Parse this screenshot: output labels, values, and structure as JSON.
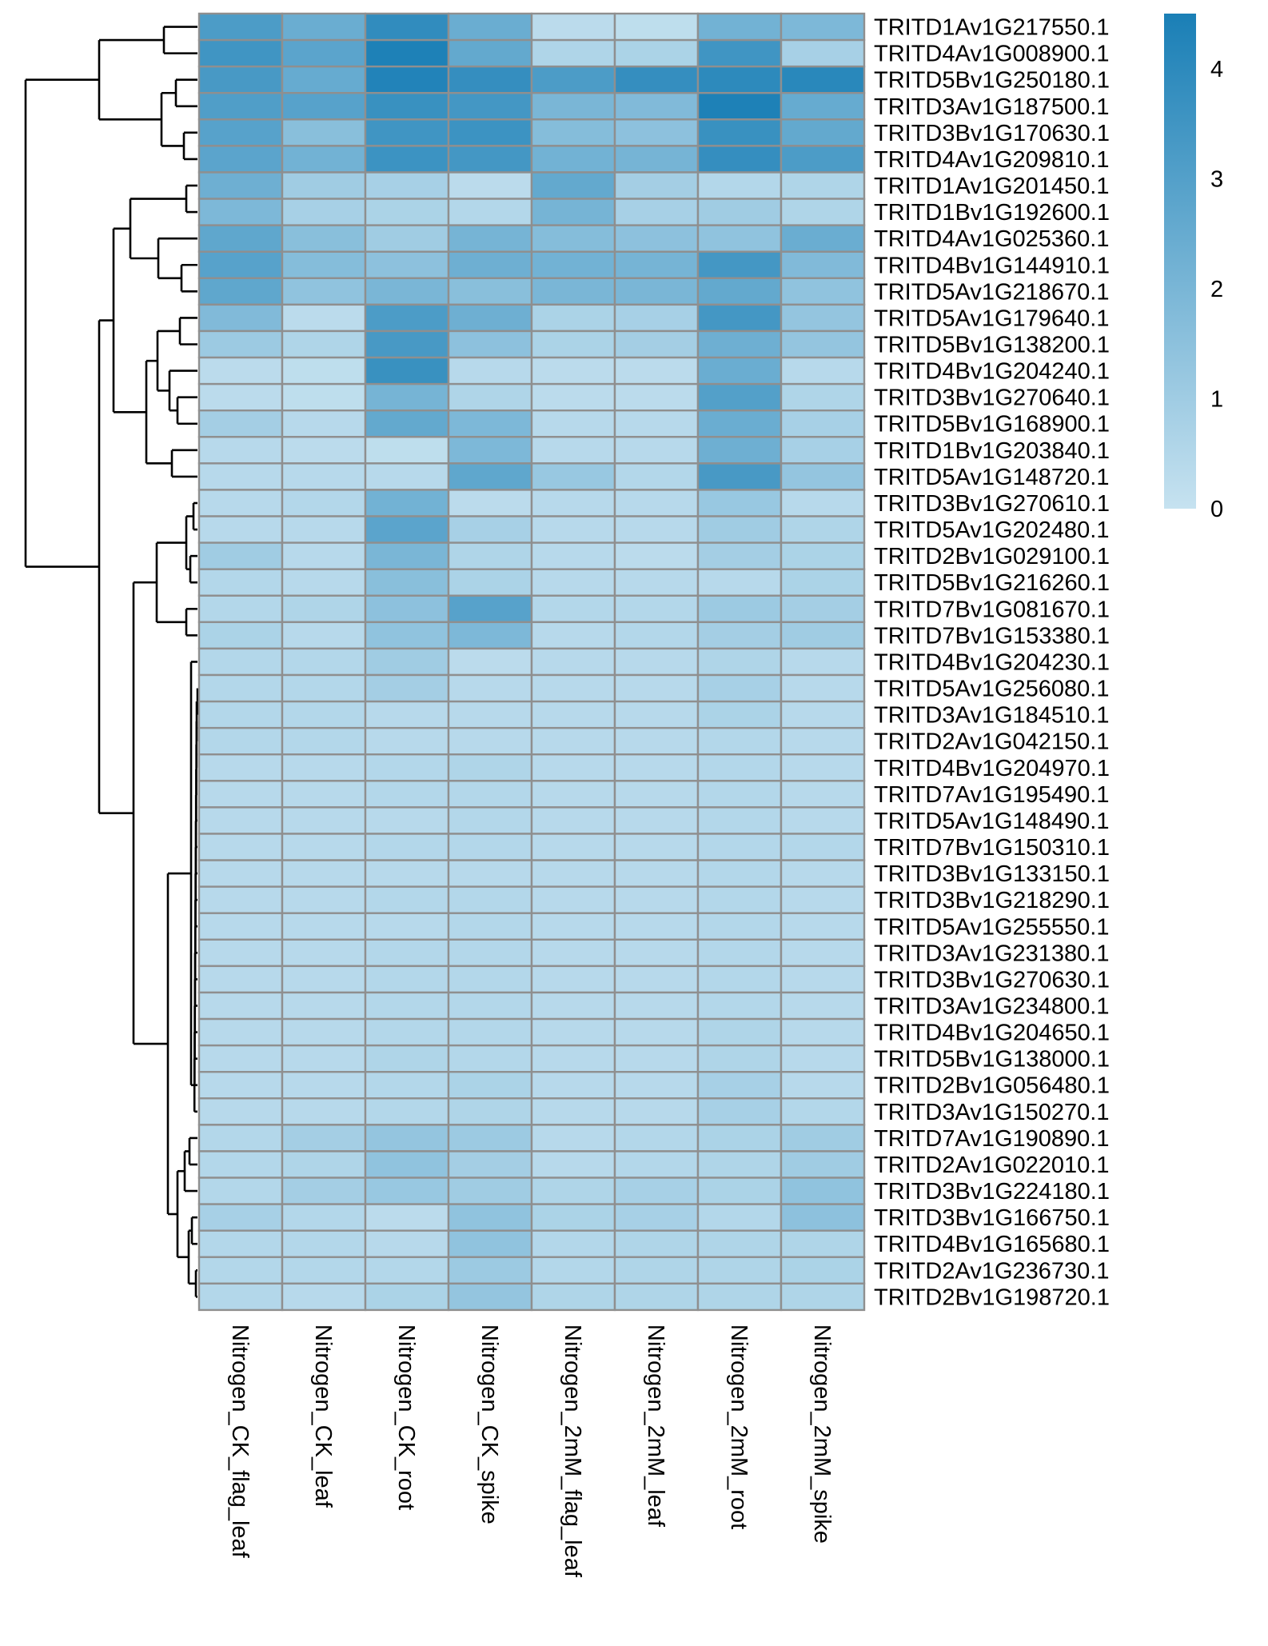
{
  "chart_data": {
    "type": "heatmap",
    "title": "",
    "columns": [
      "Nitrogen_CK_flag_leaf",
      "Nitrogen_CK_leaf",
      "Nitrogen_CK_root",
      "Nitrogen_CK_spike",
      "Nitrogen_2mM_flag_leaf",
      "Nitrogen_2mM_leaf",
      "Nitrogen_2mM_root",
      "Nitrogen_2mM_spike"
    ],
    "rows": [
      "TRITD1Av1G217550.1",
      "TRITD4Av1G008900.1",
      "TRITD5Bv1G250180.1",
      "TRITD3Av1G187500.1",
      "TRITD3Bv1G170630.1",
      "TRITD4Av1G209810.1",
      "TRITD1Av1G201450.1",
      "TRITD1Bv1G192600.1",
      "TRITD4Av1G025360.1",
      "TRITD4Bv1G144910.1",
      "TRITD5Av1G218670.1",
      "TRITD5Av1G179640.1",
      "TRITD5Bv1G138200.1",
      "TRITD4Bv1G204240.1",
      "TRITD3Bv1G270640.1",
      "TRITD5Bv1G168900.1",
      "TRITD1Bv1G203840.1",
      "TRITD5Av1G148720.1",
      "TRITD3Bv1G270610.1",
      "TRITD5Av1G202480.1",
      "TRITD2Bv1G029100.1",
      "TRITD5Bv1G216260.1",
      "TRITD7Bv1G081670.1",
      "TRITD7Bv1G153380.1",
      "TRITD4Bv1G204230.1",
      "TRITD5Av1G256080.1",
      "TRITD3Av1G184510.1",
      "TRITD2Av1G042150.1",
      "TRITD4Bv1G204970.1",
      "TRITD7Av1G195490.1",
      "TRITD5Av1G148490.1",
      "TRITD7Bv1G150310.1",
      "TRITD3Bv1G133150.1",
      "TRITD3Bv1G218290.1",
      "TRITD5Av1G255550.1",
      "TRITD3Av1G231380.1",
      "TRITD3Bv1G270630.1",
      "TRITD3Av1G234800.1",
      "TRITD4Bv1G204650.1",
      "TRITD5Bv1G138000.1",
      "TRITD2Bv1G056480.1",
      "TRITD3Av1G150270.1",
      "TRITD7Av1G190890.1",
      "TRITD2Av1G022010.1",
      "TRITD3Bv1G224180.1",
      "TRITD3Bv1G166750.1",
      "TRITD4Bv1G165680.1",
      "TRITD2Av1G236730.1",
      "TRITD2Bv1G198720.1"
    ],
    "values": [
      [
        3.2,
        2.4,
        3.9,
        2.4,
        0.3,
        0.2,
        2.2,
        1.9
      ],
      [
        3.5,
        2.8,
        4.4,
        2.6,
        0.6,
        0.7,
        3.5,
        0.8
      ],
      [
        3.3,
        2.5,
        4.3,
        3.8,
        3.2,
        3.8,
        4.0,
        4.1
      ],
      [
        3.1,
        2.9,
        3.7,
        3.4,
        2.0,
        1.8,
        4.4,
        2.5
      ],
      [
        2.9,
        1.6,
        3.5,
        3.6,
        1.7,
        1.5,
        3.7,
        2.6
      ],
      [
        2.8,
        2.2,
        3.6,
        3.4,
        2.2,
        2.1,
        3.8,
        3.2
      ],
      [
        2.3,
        1.0,
        0.8,
        0.3,
        2.6,
        0.9,
        0.5,
        0.6
      ],
      [
        1.9,
        0.8,
        0.7,
        0.5,
        2.1,
        0.8,
        1.0,
        0.6
      ],
      [
        2.7,
        1.6,
        1.0,
        2.1,
        1.7,
        1.5,
        1.4,
        2.4
      ],
      [
        2.9,
        1.7,
        1.5,
        2.3,
        2.2,
        2.1,
        3.4,
        1.8
      ],
      [
        2.7,
        1.4,
        2.0,
        1.6,
        2.0,
        2.0,
        2.6,
        1.4
      ],
      [
        1.8,
        0.3,
        3.2,
        2.3,
        0.7,
        0.8,
        3.4,
        1.3
      ],
      [
        1.1,
        0.6,
        3.3,
        1.5,
        0.7,
        0.9,
        2.3,
        1.3
      ],
      [
        0.3,
        0.2,
        3.7,
        0.4,
        0.3,
        0.3,
        2.4,
        0.4
      ],
      [
        0.3,
        0.2,
        2.1,
        0.6,
        0.3,
        0.3,
        3.0,
        0.6
      ],
      [
        0.9,
        0.4,
        2.6,
        1.9,
        0.4,
        0.4,
        2.4,
        0.8
      ],
      [
        0.4,
        0.3,
        0.2,
        1.9,
        0.4,
        0.4,
        2.3,
        0.8
      ],
      [
        0.4,
        0.4,
        0.4,
        2.7,
        1.2,
        0.5,
        3.3,
        1.3
      ],
      [
        0.4,
        0.5,
        2.2,
        0.3,
        0.4,
        0.4,
        1.2,
        0.4
      ],
      [
        0.4,
        0.4,
        2.8,
        0.8,
        0.4,
        0.4,
        1.0,
        0.6
      ],
      [
        1.0,
        0.4,
        2.0,
        0.6,
        0.4,
        0.3,
        0.9,
        0.7
      ],
      [
        0.5,
        0.4,
        1.6,
        0.7,
        0.4,
        0.4,
        0.4,
        0.7
      ],
      [
        0.5,
        0.6,
        1.5,
        2.9,
        0.5,
        0.5,
        1.1,
        0.9
      ],
      [
        0.7,
        0.4,
        1.4,
        1.9,
        0.4,
        0.5,
        0.9,
        1.0
      ],
      [
        0.5,
        0.5,
        1.0,
        0.3,
        0.4,
        0.4,
        0.6,
        0.4
      ],
      [
        0.5,
        0.5,
        0.9,
        0.4,
        0.4,
        0.4,
        0.8,
        0.4
      ],
      [
        0.5,
        0.5,
        0.4,
        0.4,
        0.4,
        0.4,
        0.7,
        0.4
      ],
      [
        0.5,
        0.5,
        0.4,
        0.4,
        0.4,
        0.4,
        0.5,
        0.4
      ],
      [
        0.4,
        0.4,
        0.5,
        0.6,
        0.4,
        0.4,
        0.5,
        0.4
      ],
      [
        0.4,
        0.4,
        0.5,
        0.5,
        0.4,
        0.4,
        0.5,
        0.4
      ],
      [
        0.4,
        0.4,
        0.4,
        0.5,
        0.4,
        0.4,
        0.5,
        0.4
      ],
      [
        0.4,
        0.4,
        0.5,
        0.5,
        0.4,
        0.4,
        0.5,
        0.5
      ],
      [
        0.4,
        0.4,
        0.4,
        0.4,
        0.4,
        0.4,
        0.5,
        0.4
      ],
      [
        0.4,
        0.4,
        0.5,
        0.5,
        0.4,
        0.4,
        0.5,
        0.4
      ],
      [
        0.4,
        0.4,
        0.4,
        0.5,
        0.4,
        0.4,
        0.5,
        0.4
      ],
      [
        0.4,
        0.4,
        0.5,
        0.5,
        0.4,
        0.4,
        0.5,
        0.4
      ],
      [
        0.4,
        0.4,
        0.5,
        0.5,
        0.4,
        0.4,
        0.5,
        0.4
      ],
      [
        0.4,
        0.4,
        0.5,
        0.5,
        0.4,
        0.4,
        0.5,
        0.4
      ],
      [
        0.4,
        0.4,
        0.5,
        0.5,
        0.4,
        0.4,
        0.6,
        0.4
      ],
      [
        0.4,
        0.4,
        0.6,
        0.5,
        0.4,
        0.4,
        0.6,
        0.4
      ],
      [
        0.4,
        0.4,
        0.5,
        0.7,
        0.4,
        0.4,
        0.8,
        0.4
      ],
      [
        0.4,
        0.4,
        0.5,
        0.6,
        0.4,
        0.4,
        0.8,
        0.5
      ],
      [
        0.5,
        0.9,
        1.3,
        1.1,
        0.4,
        0.5,
        0.7,
        1.0
      ],
      [
        0.5,
        0.6,
        1.4,
        0.9,
        0.4,
        0.5,
        0.6,
        1.0
      ],
      [
        0.5,
        0.9,
        1.2,
        1.0,
        0.6,
        0.8,
        0.7,
        1.4
      ],
      [
        0.8,
        0.5,
        0.3,
        1.4,
        0.7,
        0.8,
        0.5,
        1.5
      ],
      [
        0.5,
        0.5,
        0.4,
        1.4,
        0.5,
        0.6,
        0.6,
        0.6
      ],
      [
        0.5,
        0.5,
        0.5,
        1.1,
        0.5,
        0.6,
        0.6,
        0.7
      ],
      [
        0.5,
        0.4,
        0.7,
        1.3,
        0.6,
        0.6,
        0.6,
        0.6
      ]
    ],
    "color_scale": {
      "low": "#c6e2f0",
      "high": "#1a7fb6",
      "range": [
        0,
        4.5
      ],
      "ticks": [
        0,
        1,
        2,
        3,
        4
      ]
    },
    "cell_border_color": "#8f8f8f",
    "row_dendrogram": true,
    "legend_position": "top-right"
  }
}
